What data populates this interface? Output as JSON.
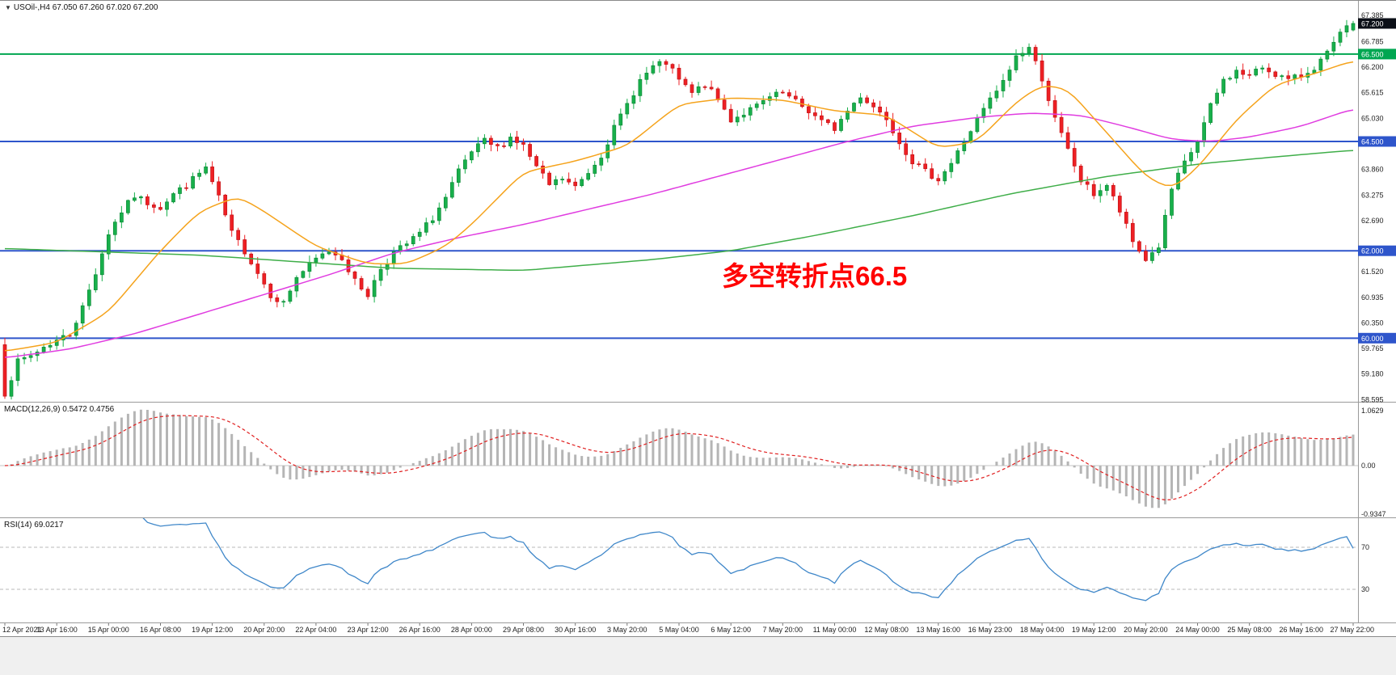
{
  "chart": {
    "marker_icon": "▼",
    "title": "USOil-,H4 67.050 67.260 67.020 67.200",
    "annotation": {
      "text": "多空转折点66.5",
      "color": "#ff0000"
    }
  },
  "chart_data": {
    "type": "candlestick",
    "symbol": "USOil-",
    "timeframe": "H4",
    "current": {
      "open": 67.05,
      "high": 67.26,
      "low": 67.02,
      "close": 67.2
    },
    "ylim": [
      58.545,
      67.7
    ],
    "bar_count": 209,
    "label_every": 8,
    "first_open": 59.85,
    "seed": 7,
    "noise": 0.16,
    "wick": 0.14,
    "colors": {
      "up": "#18b04b",
      "up_border": "#0c8a37",
      "down": "#ee2024",
      "down_border": "#c21317"
    },
    "close_waypoints": [
      [
        0,
        58.75
      ],
      [
        2,
        59.45
      ],
      [
        4,
        59.6
      ],
      [
        6,
        59.8
      ],
      [
        8,
        59.95
      ],
      [
        10,
        60.1
      ],
      [
        12,
        60.7
      ],
      [
        14,
        61.5
      ],
      [
        16,
        62.4
      ],
      [
        18,
        62.9
      ],
      [
        20,
        63.25
      ],
      [
        22,
        63.1
      ],
      [
        24,
        63.0
      ],
      [
        26,
        63.3
      ],
      [
        28,
        63.5
      ],
      [
        31,
        63.9
      ],
      [
        33,
        63.2
      ],
      [
        35,
        62.4
      ],
      [
        37,
        62.0
      ],
      [
        39,
        61.5
      ],
      [
        41,
        61.0
      ],
      [
        43,
        60.8
      ],
      [
        45,
        61.4
      ],
      [
        48,
        61.8
      ],
      [
        50,
        62.0
      ],
      [
        52,
        61.85
      ],
      [
        54,
        61.3
      ],
      [
        56,
        61.0
      ],
      [
        58,
        61.6
      ],
      [
        60,
        61.95
      ],
      [
        62,
        62.15
      ],
      [
        64,
        62.4
      ],
      [
        66,
        62.75
      ],
      [
        68,
        63.2
      ],
      [
        70,
        63.8
      ],
      [
        72,
        64.25
      ],
      [
        74,
        64.5
      ],
      [
        76,
        64.35
      ],
      [
        78,
        64.6
      ],
      [
        80,
        64.4
      ],
      [
        82,
        63.9
      ],
      [
        84,
        63.5
      ],
      [
        86,
        63.65
      ],
      [
        88,
        63.45
      ],
      [
        90,
        63.8
      ],
      [
        92,
        64.2
      ],
      [
        94,
        64.8
      ],
      [
        96,
        65.35
      ],
      [
        98,
        65.9
      ],
      [
        100,
        66.2
      ],
      [
        102,
        66.3
      ],
      [
        104,
        65.9
      ],
      [
        106,
        65.6
      ],
      [
        108,
        65.8
      ],
      [
        110,
        65.45
      ],
      [
        112,
        65.0
      ],
      [
        114,
        65.15
      ],
      [
        116,
        65.3
      ],
      [
        118,
        65.5
      ],
      [
        120,
        65.6
      ],
      [
        122,
        65.4
      ],
      [
        124,
        65.2
      ],
      [
        126,
        64.95
      ],
      [
        128,
        64.8
      ],
      [
        130,
        65.2
      ],
      [
        132,
        65.55
      ],
      [
        134,
        65.3
      ],
      [
        136,
        65.05
      ],
      [
        138,
        64.5
      ],
      [
        140,
        64.05
      ],
      [
        142,
        63.8
      ],
      [
        144,
        63.65
      ],
      [
        146,
        64.0
      ],
      [
        148,
        64.5
      ],
      [
        150,
        65.0
      ],
      [
        152,
        65.45
      ],
      [
        154,
        65.85
      ],
      [
        156,
        66.45
      ],
      [
        158,
        66.65
      ],
      [
        160,
        65.95
      ],
      [
        162,
        65.0
      ],
      [
        164,
        64.3
      ],
      [
        166,
        63.6
      ],
      [
        168,
        63.3
      ],
      [
        170,
        63.5
      ],
      [
        172,
        62.9
      ],
      [
        174,
        62.2
      ],
      [
        176,
        61.8
      ],
      [
        178,
        62.1
      ],
      [
        180,
        63.4
      ],
      [
        182,
        64.0
      ],
      [
        184,
        64.5
      ],
      [
        186,
        65.3
      ],
      [
        188,
        65.9
      ],
      [
        190,
        66.1
      ],
      [
        192,
        66.0
      ],
      [
        194,
        66.2
      ],
      [
        196,
        66.05
      ],
      [
        198,
        65.9
      ],
      [
        200,
        66.0
      ],
      [
        202,
        66.2
      ],
      [
        204,
        66.5
      ],
      [
        206,
        66.95
      ],
      [
        208,
        67.2
      ]
    ],
    "moving_averages": [
      {
        "name": "slow-green",
        "color": "#3fae49",
        "waypoints": [
          [
            0,
            62.05
          ],
          [
            30,
            61.9
          ],
          [
            60,
            61.6
          ],
          [
            80,
            61.55
          ],
          [
            100,
            61.8
          ],
          [
            112,
            62.0
          ],
          [
            125,
            62.35
          ],
          [
            140,
            62.8
          ],
          [
            155,
            63.3
          ],
          [
            170,
            63.7
          ],
          [
            185,
            64.0
          ],
          [
            200,
            64.2
          ],
          [
            208,
            64.3
          ]
        ]
      },
      {
        "name": "medium-magenta",
        "color": "#e03ce0",
        "waypoints": [
          [
            0,
            59.55
          ],
          [
            10,
            59.75
          ],
          [
            20,
            60.1
          ],
          [
            30,
            60.55
          ],
          [
            40,
            61.0
          ],
          [
            50,
            61.45
          ],
          [
            60,
            61.95
          ],
          [
            70,
            62.3
          ],
          [
            80,
            62.6
          ],
          [
            90,
            62.95
          ],
          [
            100,
            63.3
          ],
          [
            110,
            63.7
          ],
          [
            120,
            64.1
          ],
          [
            130,
            64.5
          ],
          [
            140,
            64.85
          ],
          [
            150,
            65.05
          ],
          [
            158,
            65.15
          ],
          [
            166,
            65.1
          ],
          [
            174,
            64.8
          ],
          [
            180,
            64.55
          ],
          [
            186,
            64.5
          ],
          [
            192,
            64.6
          ],
          [
            200,
            64.85
          ],
          [
            208,
            65.25
          ]
        ]
      },
      {
        "name": "fast-orange",
        "color": "#f5a31c",
        "waypoints": [
          [
            0,
            59.7
          ],
          [
            8,
            59.9
          ],
          [
            16,
            60.6
          ],
          [
            24,
            62.0
          ],
          [
            30,
            62.9
          ],
          [
            36,
            63.25
          ],
          [
            40,
            62.9
          ],
          [
            48,
            62.1
          ],
          [
            56,
            61.7
          ],
          [
            62,
            61.7
          ],
          [
            68,
            62.1
          ],
          [
            72,
            62.6
          ],
          [
            80,
            63.8
          ],
          [
            88,
            64.05
          ],
          [
            96,
            64.4
          ],
          [
            104,
            65.35
          ],
          [
            112,
            65.5
          ],
          [
            120,
            65.45
          ],
          [
            128,
            65.2
          ],
          [
            136,
            65.1
          ],
          [
            144,
            64.35
          ],
          [
            150,
            64.5
          ],
          [
            156,
            65.4
          ],
          [
            160,
            65.8
          ],
          [
            164,
            65.7
          ],
          [
            170,
            64.7
          ],
          [
            176,
            63.7
          ],
          [
            180,
            63.4
          ],
          [
            184,
            63.9
          ],
          [
            190,
            65.0
          ],
          [
            196,
            65.8
          ],
          [
            202,
            66.05
          ],
          [
            208,
            66.35
          ]
        ]
      }
    ],
    "hlines": [
      {
        "price": 66.5,
        "color": "#00a651",
        "width": 2
      },
      {
        "price": 64.5,
        "color": "#2e55cb",
        "width": 2
      },
      {
        "price": 62.0,
        "color": "#2e55cb",
        "width": 2
      },
      {
        "price": 60.0,
        "color": "#2e55cb",
        "width": 2
      }
    ],
    "price_axis": {
      "ticks": [
        67.385,
        66.785,
        66.2,
        65.615,
        65.03,
        63.86,
        63.275,
        62.69,
        61.52,
        60.935,
        60.35,
        59.765,
        59.18,
        58.595
      ],
      "boxes": [
        {
          "price": 67.2,
          "label": "67.200",
          "color": "#0b0f17"
        },
        {
          "price": 66.5,
          "label": "66.500",
          "color": "#00a651"
        },
        {
          "price": 64.5,
          "label": "64.500",
          "color": "#2e55cb"
        },
        {
          "price": 62.0,
          "label": "62.000",
          "color": "#2e55cb"
        },
        {
          "price": 60.0,
          "label": "60.000",
          "color": "#2e55cb"
        }
      ]
    },
    "macd": {
      "label": "MACD(12,26,9) 0.5472 0.4756",
      "params": [
        12,
        26,
        9
      ],
      "macd_value": 0.5472,
      "signal_value": 0.4756,
      "axis_ticks": [
        {
          "value": 1.0629,
          "label": "1.0629"
        },
        {
          "value": 0,
          "label": "0.00"
        },
        {
          "value": -0.9347,
          "label": "-0.9347"
        }
      ],
      "histogram_color": "#b5b5b5",
      "signal_color": "#e02020"
    },
    "rsi": {
      "label": "RSI(14) 69.0217",
      "period": 14,
      "value": 69.0217,
      "levels": [
        70,
        30
      ],
      "color": "#3f87c9",
      "level_color": "#b9b9b9"
    },
    "time_labels": [
      "12 Apr 2021",
      "13 Apr 16:00",
      "15 Apr 00:00",
      "16 Apr 08:00",
      "19 Apr 12:00",
      "20 Apr 20:00",
      "22 Apr 04:00",
      "23 Apr 12:00",
      "26 Apr 16:00",
      "28 Apr 00:00",
      "29 Apr 08:00",
      "30 Apr 16:00",
      "3 May 20:00",
      "5 May 04:00",
      "6 May 12:00",
      "7 May 20:00",
      "11 May 00:00",
      "12 May 08:00",
      "13 May 16:00",
      "16 May 23:00",
      "18 May 04:00",
      "19 May 12:00",
      "20 May 20:00",
      "24 May 00:00",
      "25 May 08:00",
      "26 May 16:00",
      "27 May 22:00"
    ]
  }
}
